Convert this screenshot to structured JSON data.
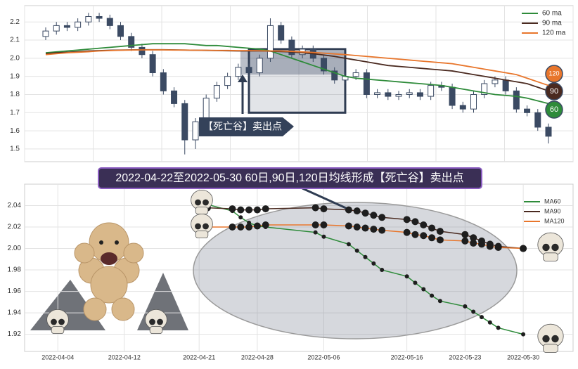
{
  "chart_data": [
    {
      "type": "candlestick",
      "ylim": [
        1.43,
        2.29
      ],
      "yticks": [
        1.5,
        1.6,
        1.7,
        1.8,
        1.9,
        {
          "value": 2,
          "label": "2.0"
        },
        2.1,
        2.2
      ],
      "grid": true,
      "up_color": "#ffffff",
      "down_color": "#3b4a63",
      "open": [
        2.12,
        2.15,
        2.18,
        2.17,
        2.2,
        2.23,
        2.22,
        2.18,
        2.12,
        2.06,
        2.02,
        1.92,
        1.82,
        1.75,
        1.55,
        1.65,
        1.78,
        1.85,
        1.9,
        1.95,
        1.92,
        2.0,
        2.18,
        2.1,
        2.02,
        2.05,
        2.0,
        1.93,
        1.88,
        1.9,
        1.92,
        1.8,
        1.81,
        1.79,
        1.8,
        1.81,
        1.79,
        1.85,
        1.84,
        1.74,
        1.72,
        1.8,
        1.86,
        1.88,
        1.82,
        1.72,
        1.7,
        1.62
      ],
      "high": [
        2.17,
        2.2,
        2.2,
        2.22,
        2.25,
        2.25,
        2.24,
        2.2,
        2.14,
        2.08,
        2.04,
        1.94,
        1.84,
        1.77,
        1.67,
        1.8,
        1.87,
        1.92,
        1.97,
        1.97,
        2.02,
        2.22,
        2.2,
        2.12,
        2.07,
        2.07,
        2.02,
        1.95,
        1.92,
        1.94,
        1.94,
        1.83,
        1.83,
        1.82,
        1.83,
        1.83,
        1.87,
        1.87,
        1.86,
        1.76,
        1.82,
        1.88,
        1.9,
        1.9,
        1.84,
        1.74,
        1.72,
        1.64
      ],
      "low": [
        2.1,
        2.13,
        2.15,
        2.15,
        2.18,
        2.2,
        2.16,
        2.1,
        2.04,
        2.0,
        1.9,
        1.8,
        1.73,
        1.47,
        1.5,
        1.63,
        1.76,
        1.83,
        1.88,
        1.9,
        1.9,
        1.98,
        2.08,
        2.0,
        2.0,
        1.98,
        1.91,
        1.86,
        1.86,
        1.88,
        1.78,
        1.78,
        1.77,
        1.77,
        1.78,
        1.77,
        1.77,
        1.82,
        1.72,
        1.7,
        1.7,
        1.78,
        1.84,
        1.8,
        1.7,
        1.68,
        1.6,
        1.53
      ],
      "close": [
        2.15,
        2.18,
        2.17,
        2.2,
        2.23,
        2.22,
        2.18,
        2.12,
        2.06,
        2.02,
        1.92,
        1.82,
        1.75,
        1.55,
        1.65,
        1.78,
        1.85,
        1.9,
        1.95,
        1.92,
        2.0,
        2.18,
        2.1,
        2.02,
        2.05,
        2.0,
        1.93,
        1.88,
        1.9,
        1.92,
        1.8,
        1.81,
        1.79,
        1.8,
        1.81,
        1.79,
        1.85,
        1.84,
        1.74,
        1.72,
        1.8,
        1.86,
        1.88,
        1.82,
        1.72,
        1.7,
        1.62,
        1.57
      ],
      "series": [
        {
          "name": "60 ma",
          "badge": "60",
          "color": "#2e8b3a",
          "values": [
            2.03,
            2.035,
            2.04,
            2.045,
            2.05,
            2.055,
            2.06,
            2.065,
            2.07,
            2.075,
            2.08,
            2.08,
            2.08,
            2.08,
            2.075,
            2.07,
            2.07,
            2.065,
            2.06,
            2.055,
            2.05,
            2.04,
            2.02,
            2.0,
            1.98,
            1.96,
            1.94,
            1.92,
            1.9,
            1.89,
            1.885,
            1.88,
            1.875,
            1.87,
            1.865,
            1.86,
            1.855,
            1.85,
            1.84,
            1.83,
            1.82,
            1.81,
            1.8,
            1.795,
            1.79,
            1.78,
            1.765,
            1.75
          ]
        },
        {
          "name": "90 ma",
          "badge": "90",
          "color": "#4a2a20",
          "values": [
            2.025,
            2.03,
            2.033,
            2.036,
            2.04,
            2.042,
            2.044,
            2.045,
            2.046,
            2.047,
            2.047,
            2.047,
            2.046,
            2.045,
            2.044,
            2.043,
            2.042,
            2.041,
            2.04,
            2.04,
            2.04,
            2.039,
            2.037,
            2.035,
            2.03,
            2.025,
            2.018,
            2.01,
            2.0,
            1.99,
            1.98,
            1.97,
            1.96,
            1.955,
            1.95,
            1.945,
            1.94,
            1.935,
            1.93,
            1.92,
            1.91,
            1.9,
            1.89,
            1.88,
            1.87,
            1.86,
            1.84,
            1.82
          ]
        },
        {
          "name": "120 ma",
          "badge": "120",
          "color": "#e8762c",
          "values": [
            2.02,
            2.025,
            2.03,
            2.033,
            2.036,
            2.04,
            2.042,
            2.044,
            2.045,
            2.046,
            2.046,
            2.046,
            2.045,
            2.045,
            2.044,
            2.044,
            2.043,
            2.043,
            2.042,
            2.042,
            2.041,
            2.04,
            2.04,
            2.038,
            2.035,
            2.032,
            2.028,
            2.024,
            2.02,
            2.015,
            2.01,
            2.005,
            2.0,
            1.995,
            1.99,
            1.985,
            1.98,
            1.975,
            1.97,
            1.96,
            1.95,
            1.94,
            1.93,
            1.92,
            1.91,
            1.89,
            1.87,
            1.85
          ]
        }
      ],
      "annotation": "【死亡谷】卖出点"
    },
    {
      "type": "line",
      "xlim": [
        "2022-03-31",
        "2022-06-05"
      ],
      "ylim": [
        1.904,
        2.06
      ],
      "xticks": [
        "2022-04-04",
        "2022-04-12",
        "2022-04-21",
        "2022-04-28",
        "2022-05-06",
        "2022-05-16",
        "2022-05-23",
        "2022-05-30"
      ],
      "yticks": [
        1.92,
        1.94,
        1.96,
        1.98,
        {
          "value": 2,
          "label": "2.00"
        },
        2.02,
        2.04
      ],
      "grid": true,
      "x": [
        "2022-04-22",
        "2022-04-25",
        "2022-04-26",
        "2022-04-27",
        "2022-04-28",
        "2022-04-29",
        "2022-05-05",
        "2022-05-06",
        "2022-05-09",
        "2022-05-10",
        "2022-05-11",
        "2022-05-12",
        "2022-05-13",
        "2022-05-16",
        "2022-05-17",
        "2022-05-18",
        "2022-05-19",
        "2022-05-20",
        "2022-05-23",
        "2022-05-24",
        "2022-05-25",
        "2022-05-26",
        "2022-05-27",
        "2022-05-30"
      ],
      "series": [
        {
          "name": "MA60",
          "color": "#2e8b3a",
          "values": [
            2.041,
            2.035,
            2.029,
            2.024,
            2.021,
            2.02,
            2.015,
            2.011,
            2.004,
            1.998,
            1.992,
            1.986,
            1.98,
            1.974,
            1.968,
            1.962,
            1.956,
            1.951,
            1.946,
            1.941,
            1.936,
            1.931,
            1.926,
            1.92
          ]
        },
        {
          "name": "MA90",
          "color": "#4a2a20",
          "values": [
            2.038,
            2.037,
            2.036,
            2.036,
            2.036,
            2.037,
            2.038,
            2.037,
            2.036,
            2.035,
            2.033,
            2.031,
            2.029,
            2.027,
            2.025,
            2.022,
            2.019,
            2.016,
            2.013,
            2.01,
            2.007,
            2.004,
            2.002,
            2.0
          ]
        },
        {
          "name": "MA120",
          "color": "#e8762c",
          "values": [
            2.02,
            2.02,
            2.02,
            2.02,
            2.021,
            2.022,
            2.022,
            2.022,
            2.021,
            2.02,
            2.019,
            2.018,
            2.017,
            2.015,
            2.013,
            2.012,
            2.01,
            2.008,
            2.007,
            2.005,
            2.004,
            2.002,
            2.001,
            2.0
          ]
        }
      ]
    }
  ],
  "banner": "2022-04-22至2022-05-30 60日,90日,120日均线形成【死亡谷】卖出点"
}
